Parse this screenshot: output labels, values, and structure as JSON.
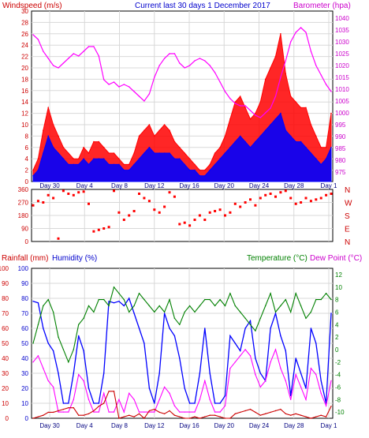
{
  "page": {
    "title": "Current last 30 days 1 December 2017"
  },
  "colors": {
    "wind": "#ff0000",
    "gust_fill": "#ff0000",
    "wind_avg": "#0000ff",
    "barometer": "#ff00ff",
    "direction": "#ff0000",
    "humidity": "#0000ff",
    "rainfall": "#cc0000",
    "temperature": "#008000",
    "dew_point": "#ff00ff",
    "frame": "#000000",
    "grid": "#d8d8d8"
  },
  "chart_data": [
    {
      "type": "line",
      "id": "wind-barometer",
      "title": "Current last 30 days 1 December 2017",
      "ylabel_left": "Windspeed (m/s)",
      "ylabel_right": "Barometer (hpa)",
      "ylim_left": [
        0,
        30
      ],
      "ylim_right": [
        971,
        1043
      ],
      "yticks_left": [
        "0",
        "2",
        "4",
        "6",
        "8",
        "10",
        "12",
        "14",
        "16",
        "18",
        "20",
        "22",
        "24",
        "26",
        "28",
        "30"
      ],
      "yticks_right": [
        "975",
        "980",
        "985",
        "990",
        "995",
        "1000",
        "1005",
        "1010",
        "1015",
        "1020",
        "1025",
        "1030",
        "1035",
        "1040"
      ],
      "x_labels": [
        "Day 30",
        "Day 4",
        "Day 8",
        "Day 12",
        "Day 16",
        "Day 20",
        "Day 24",
        "Day 28",
        "Day 1"
      ],
      "grid": true,
      "series": [
        {
          "name": "Windspeed (m/s)",
          "role": "gust",
          "values": [
            2,
            4,
            9,
            13,
            10,
            8,
            6,
            5,
            4,
            4,
            6,
            5,
            7,
            7,
            6,
            5,
            5,
            4,
            3,
            3,
            5,
            8,
            9,
            10,
            8,
            9,
            10,
            9,
            7,
            6,
            5,
            4,
            3,
            2,
            2,
            3,
            5,
            6,
            8,
            11,
            14,
            15,
            13,
            11,
            12,
            14,
            18,
            20,
            22,
            26,
            19,
            15,
            14,
            13,
            13,
            10,
            8,
            6,
            6,
            12
          ]
        },
        {
          "name": "Windspeed avg",
          "role": "average",
          "values": [
            1,
            2,
            5,
            8,
            6,
            5,
            4,
            3,
            3,
            3,
            4,
            3,
            4,
            4,
            4,
            3,
            3,
            3,
            2,
            2,
            3,
            4,
            5,
            6,
            5,
            5,
            5,
            5,
            4,
            4,
            3,
            2,
            2,
            1,
            1,
            2,
            3,
            4,
            5,
            6,
            7,
            8,
            7,
            6,
            7,
            8,
            9,
            10,
            11,
            12,
            9,
            8,
            7,
            7,
            6,
            5,
            4,
            3,
            4,
            6
          ]
        },
        {
          "name": "Barometer (hpa)",
          "values": [
            1033,
            1031,
            1026,
            1023,
            1020,
            1019,
            1021,
            1023,
            1025,
            1024,
            1026,
            1028,
            1028,
            1024,
            1014,
            1012,
            1013,
            1011,
            1012,
            1011,
            1009,
            1007,
            1005,
            1008,
            1015,
            1020,
            1023,
            1025,
            1025,
            1021,
            1019,
            1020,
            1022,
            1023,
            1022,
            1020,
            1017,
            1013,
            1009,
            1006,
            1004,
            1003,
            1003,
            1001,
            999,
            998,
            1000,
            1002,
            1007,
            1015,
            1022,
            1030,
            1034,
            1036,
            1034,
            1026,
            1020,
            1016,
            1012,
            1009
          ]
        }
      ]
    },
    {
      "type": "scatter",
      "id": "wind-direction",
      "yticks_left": [
        "0",
        "90",
        "180",
        "270",
        "360"
      ],
      "compass_labels": [
        "N",
        "W",
        "S",
        "E",
        "N"
      ],
      "ylim": [
        0,
        360
      ],
      "x_labels": [
        "Day 30",
        "Day 4",
        "Day 8",
        "Day 12",
        "Day 16",
        "Day 20",
        "Day 24",
        "Day 28",
        "Day 1"
      ],
      "grid": true,
      "series": [
        {
          "name": "Wind direction",
          "values": [
            250,
            280,
            270,
            320,
            300,
            20,
            350,
            330,
            320,
            340,
            345,
            260,
            70,
            80,
            90,
            100,
            350,
            200,
            150,
            180,
            210,
            330,
            300,
            280,
            220,
            200,
            240,
            340,
            310,
            120,
            130,
            110,
            150,
            180,
            150,
            200,
            210,
            220,
            180,
            200,
            260,
            240,
            270,
            290,
            250,
            300,
            320,
            330,
            310,
            340,
            350,
            300,
            260,
            270,
            300,
            280,
            290,
            300,
            320,
            330
          ]
        }
      ]
    },
    {
      "type": "line",
      "id": "humidity-temp",
      "ylabel_left_1": "Rainfall (mm)",
      "ylabel_left_2": "Humidity (%)",
      "ylabel_right_1": "Temperature (°C)",
      "ylabel_right_2": "Dew Point (°C)",
      "yticks_rain": [
        "0",
        "10",
        "20",
        "30",
        "40",
        "50",
        "60",
        "70",
        "80",
        "90",
        "100"
      ],
      "yticks_humidity": [
        "0",
        "10",
        "20",
        "30",
        "40",
        "50",
        "60",
        "70",
        "80",
        "90",
        "100"
      ],
      "yticks_temp": [
        "-10",
        "-8",
        "-6",
        "-4",
        "-2",
        "0",
        "2",
        "4",
        "6",
        "8",
        "10",
        "12"
      ],
      "ylim_humidity": [
        0,
        100
      ],
      "ylim_temp": [
        -11,
        13
      ],
      "x_labels": [
        "Day 30",
        "Day 4",
        "Day 8",
        "Day 12",
        "Day 16",
        "Day 20",
        "Day 24",
        "Day 28",
        "Day 1"
      ],
      "grid": true,
      "series": [
        {
          "name": "Humidity (%)",
          "values": [
            78,
            77,
            60,
            50,
            45,
            30,
            10,
            10,
            30,
            55,
            45,
            20,
            10,
            10,
            30,
            78,
            77,
            78,
            75,
            80,
            70,
            60,
            50,
            20,
            10,
            30,
            70,
            60,
            55,
            40,
            20,
            10,
            10,
            30,
            60,
            30,
            10,
            10,
            15,
            55,
            50,
            45,
            60,
            65,
            40,
            30,
            25,
            60,
            70,
            55,
            45,
            15,
            40,
            30,
            20,
            60,
            50,
            25,
            10,
            70
          ]
        },
        {
          "name": "Rainfall (mm)",
          "values": [
            0,
            1,
            2,
            4,
            4,
            5,
            6,
            7,
            7,
            2,
            2,
            3,
            5,
            8,
            10,
            18,
            18,
            0,
            1,
            2,
            1,
            3,
            0,
            5,
            6,
            4,
            3,
            5,
            2,
            1,
            0,
            0,
            1,
            0,
            1,
            2,
            2,
            1,
            0,
            0,
            3,
            4,
            5,
            6,
            4,
            2,
            3,
            4,
            5,
            6,
            3,
            2,
            3,
            2,
            1,
            0,
            1,
            2,
            1,
            8
          ]
        },
        {
          "name": "Temperature (°C)",
          "values": [
            1,
            4,
            7,
            8,
            6,
            2,
            0,
            -2,
            0,
            4,
            5,
            7,
            6,
            8,
            8,
            7,
            10,
            9,
            8,
            6,
            7,
            9,
            8,
            7,
            6,
            7,
            6,
            8,
            5,
            4,
            6,
            7,
            6,
            7,
            8,
            8,
            7,
            8,
            7,
            9,
            7,
            6,
            5,
            4,
            3,
            5,
            7,
            9,
            6,
            7,
            8,
            6,
            9,
            7,
            5,
            6,
            8,
            8,
            9,
            8
          ]
        },
        {
          "name": "Dew Point (°C)",
          "values": [
            -2,
            -1,
            -3,
            -5,
            -6,
            -10,
            -10,
            -10,
            -8,
            -4,
            -5,
            -8,
            -10,
            -10,
            -7,
            -10,
            -10,
            -8,
            -10,
            -7,
            -8,
            -10,
            -10,
            -10,
            -10,
            -8,
            -6,
            -7,
            -9,
            -10,
            -10,
            -10,
            -10,
            -8,
            -5,
            -8,
            -10,
            -10,
            -9,
            -3,
            -2,
            -1,
            0,
            -1,
            -4,
            -6,
            -5,
            -2,
            0,
            -3,
            -5,
            -8,
            -4,
            -6,
            -8,
            -3,
            -4,
            -7,
            -9,
            -5
          ]
        }
      ]
    }
  ]
}
